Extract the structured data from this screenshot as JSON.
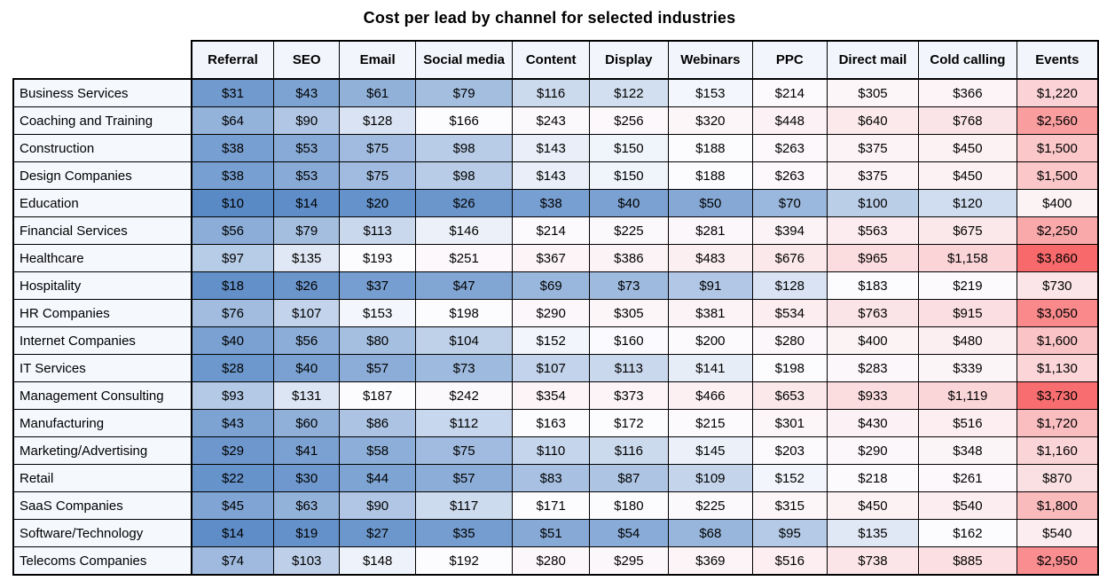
{
  "title": "Cost per lead by channel for selected industries",
  "chart_data": {
    "type": "heatmap",
    "title": "Cost per lead by channel for selected industries",
    "value_format": "$#,##0",
    "columns": [
      "Referral",
      "SEO",
      "Email",
      "Social media",
      "Content",
      "Display",
      "Webinars",
      "PPC",
      "Direct mail",
      "Cold calling",
      "Events"
    ],
    "rows": [
      {
        "industry": "Business Services",
        "values": [
          31,
          43,
          61,
          79,
          116,
          122,
          153,
          214,
          305,
          366,
          1220
        ]
      },
      {
        "industry": "Coaching and Training",
        "values": [
          64,
          90,
          128,
          166,
          243,
          256,
          320,
          448,
          640,
          768,
          2560
        ]
      },
      {
        "industry": "Construction",
        "values": [
          38,
          53,
          75,
          98,
          143,
          150,
          188,
          263,
          375,
          450,
          1500
        ]
      },
      {
        "industry": "Design Companies",
        "values": [
          38,
          53,
          75,
          98,
          143,
          150,
          188,
          263,
          375,
          450,
          1500
        ]
      },
      {
        "industry": "Education",
        "values": [
          10,
          14,
          20,
          26,
          38,
          40,
          50,
          70,
          100,
          120,
          400
        ]
      },
      {
        "industry": "Financial Services",
        "values": [
          56,
          79,
          113,
          146,
          214,
          225,
          281,
          394,
          563,
          675,
          2250
        ]
      },
      {
        "industry": "Healthcare",
        "values": [
          97,
          135,
          193,
          251,
          367,
          386,
          483,
          676,
          965,
          1158,
          3860
        ]
      },
      {
        "industry": "Hospitality",
        "values": [
          18,
          26,
          37,
          47,
          69,
          73,
          91,
          128,
          183,
          219,
          730
        ]
      },
      {
        "industry": "HR Companies",
        "values": [
          76,
          107,
          153,
          198,
          290,
          305,
          381,
          534,
          763,
          915,
          3050
        ]
      },
      {
        "industry": "Internet Companies",
        "values": [
          40,
          56,
          80,
          104,
          152,
          160,
          200,
          280,
          400,
          480,
          1600
        ]
      },
      {
        "industry": "IT Services",
        "values": [
          28,
          40,
          57,
          73,
          107,
          113,
          141,
          198,
          283,
          339,
          1130
        ]
      },
      {
        "industry": "Management Consulting",
        "values": [
          93,
          131,
          187,
          242,
          354,
          373,
          466,
          653,
          933,
          1119,
          3730
        ]
      },
      {
        "industry": "Manufacturing",
        "values": [
          43,
          60,
          86,
          112,
          163,
          172,
          215,
          301,
          430,
          516,
          1720
        ]
      },
      {
        "industry": "Marketing/Advertising",
        "values": [
          29,
          41,
          58,
          75,
          110,
          116,
          145,
          203,
          290,
          348,
          1160
        ]
      },
      {
        "industry": "Retail",
        "values": [
          22,
          30,
          44,
          57,
          83,
          87,
          109,
          152,
          218,
          261,
          870
        ]
      },
      {
        "industry": "SaaS Companies",
        "values": [
          45,
          63,
          90,
          117,
          171,
          180,
          225,
          315,
          450,
          540,
          1800
        ]
      },
      {
        "industry": "Software/Technology",
        "values": [
          14,
          19,
          27,
          35,
          51,
          54,
          68,
          95,
          135,
          162,
          540
        ]
      },
      {
        "industry": "Telecoms Companies",
        "values": [
          74,
          103,
          148,
          192,
          280,
          295,
          369,
          516,
          738,
          885,
          2950
        ]
      }
    ],
    "color_scale": {
      "min_value": 10,
      "mid_value": 161,
      "max_value": 3860,
      "min_color": "#5A8AC6",
      "mid_color": "#FCFCFF",
      "max_color": "#F8696B"
    },
    "layout": {
      "industry_col_width": 199,
      "channel_col_widths": [
        90,
        74,
        86,
        103,
        83,
        87,
        91,
        86,
        99,
        106,
        91
      ]
    }
  }
}
